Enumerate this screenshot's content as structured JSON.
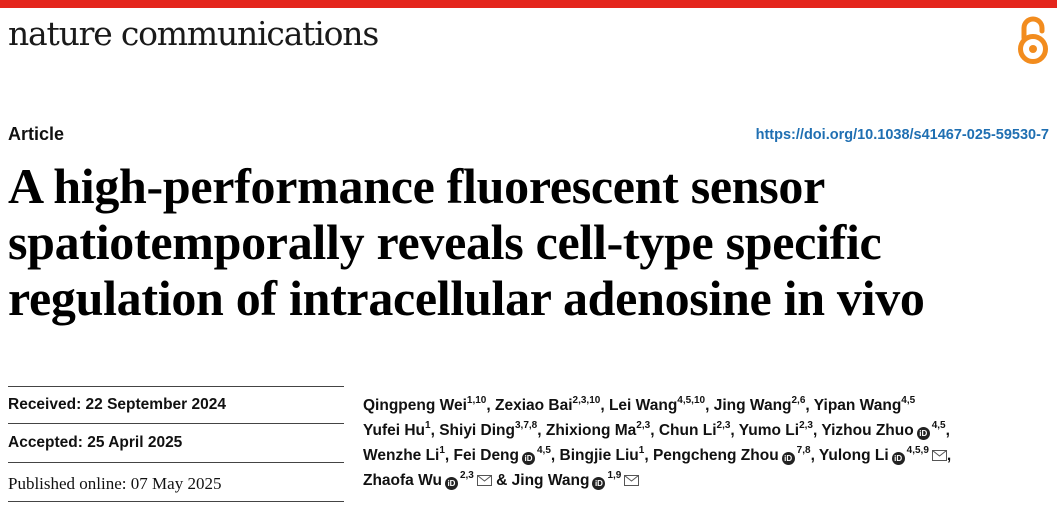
{
  "header": {
    "journal": "nature communications",
    "brand_color": "#e4261d",
    "open_access_icon": "open-access-lock-icon",
    "open_access_color": "#f28c1e"
  },
  "article": {
    "type": "Article",
    "doi": "https://doi.org/10.1038/s41467-025-59530-7",
    "title_lines": [
      "A high-performance fluorescent sensor",
      "spatiotemporally reveals cell-type specific",
      "regulation of intracellular adenosine in vivo"
    ]
  },
  "dates": {
    "received": "Received: 22 September 2024",
    "accepted": "Accepted: 25 April 2025",
    "published": "Published online: 07 May 2025"
  },
  "authors": {
    "icons": {
      "orcid": "orcid-icon",
      "email": "envelope-icon"
    },
    "lines": [
      [
        {
          "name": "Qingpeng Wei",
          "aff": "1,10"
        },
        {
          "name": "Zexiao Bai",
          "aff": "2,3,10"
        },
        {
          "name": "Lei Wang",
          "aff": "4,5,10"
        },
        {
          "name": "Jing Wang",
          "aff": "2,6"
        },
        {
          "name": "Yipan Wang",
          "aff": "4,5",
          "sep": ""
        }
      ],
      [
        {
          "name": "Yufei Hu",
          "aff": "1"
        },
        {
          "name": "Shiyi Ding",
          "aff": "3,7,8"
        },
        {
          "name": "Zhixiong Ma",
          "aff": "2,3"
        },
        {
          "name": "Chun Li",
          "aff": "2,3"
        },
        {
          "name": "Yumo Li",
          "aff": "2,3"
        },
        {
          "name": "Yizhou Zhuo",
          "aff": "4,5",
          "orcid": true
        }
      ],
      [
        {
          "name": "Wenzhe Li",
          "aff": "1"
        },
        {
          "name": "Fei Deng",
          "aff": "4,5",
          "orcid": true
        },
        {
          "name": "Bingjie Liu",
          "aff": "1"
        },
        {
          "name": "Pengcheng Zhou",
          "aff": "7,8",
          "orcid": true
        },
        {
          "name": "Yulong Li",
          "aff": "4,5,9",
          "orcid": true,
          "email": true
        }
      ],
      [
        {
          "name": "Zhaofa Wu",
          "aff": "2,3",
          "orcid": true,
          "email": true,
          "sep": " & "
        },
        {
          "name": "Jing Wang",
          "aff": "1,9",
          "orcid": true,
          "email": true,
          "sep": ""
        }
      ]
    ]
  }
}
